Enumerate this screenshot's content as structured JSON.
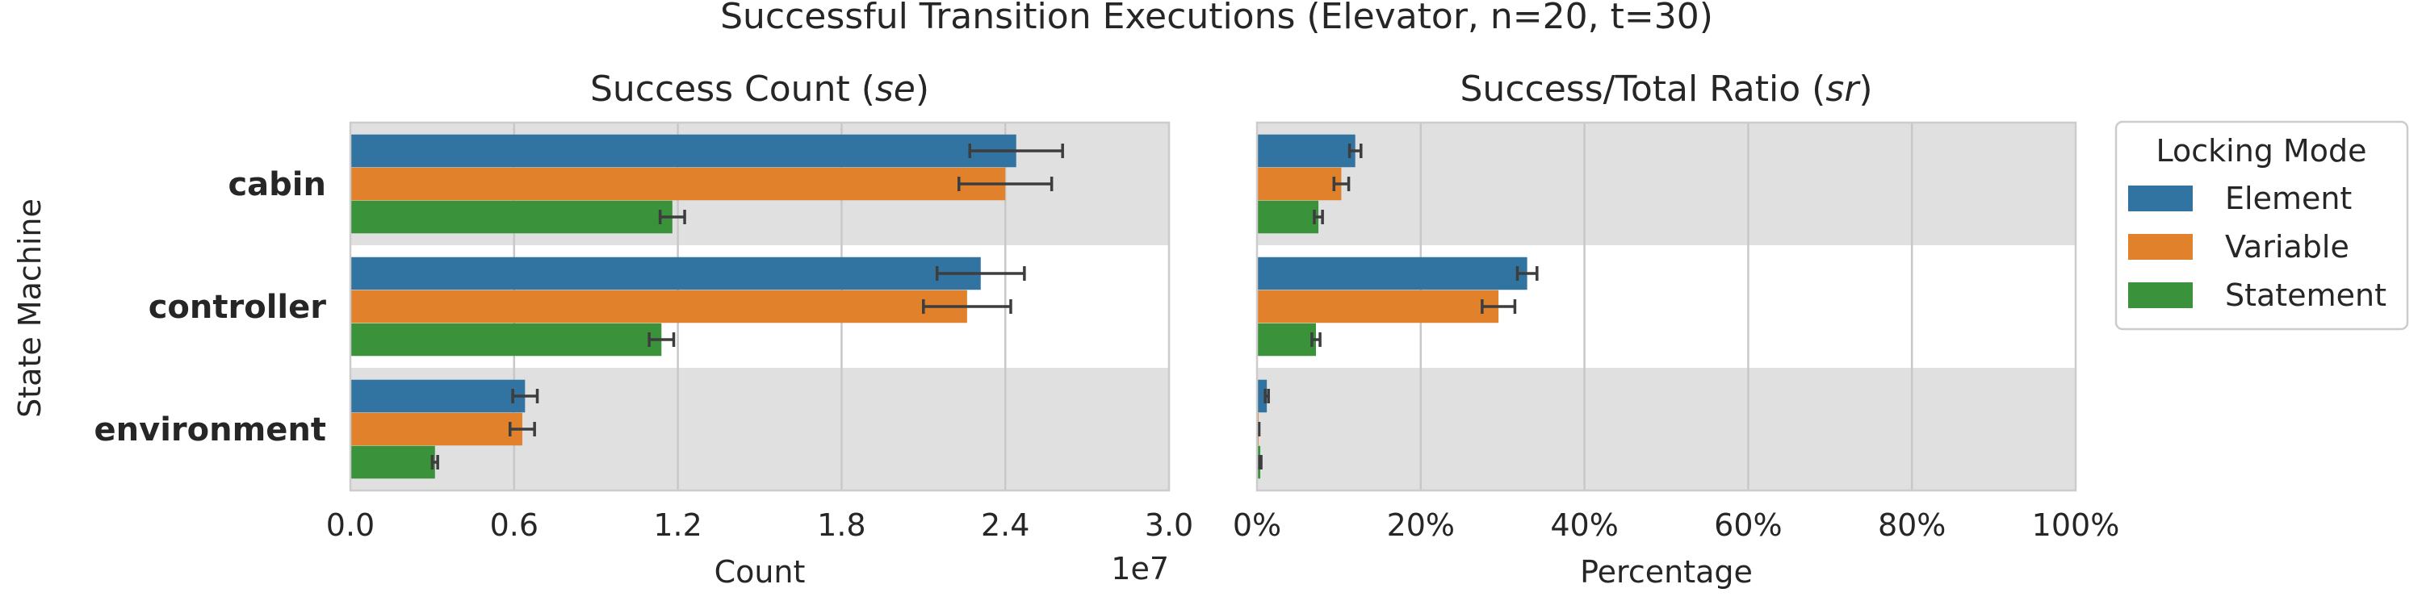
{
  "figure": {
    "suptitle": "Successful Transition Executions (Elevator, n=20, t=30)",
    "ylabel": "State Machine"
  },
  "legend": {
    "title": "Locking Mode",
    "placement": "right-outside",
    "entries": [
      {
        "name": "Element",
        "color": "#3274a1"
      },
      {
        "name": "Variable",
        "color": "#e1812c"
      },
      {
        "name": "Statement",
        "color": "#3a923a"
      }
    ]
  },
  "chart_data": [
    {
      "type": "bar",
      "orientation": "horizontal",
      "title_main": "Success Count (",
      "title_italic": "se",
      "title_end": ")",
      "xlabel": "Count",
      "x_offset_label": "1e7",
      "xlim": [
        0,
        30000000
      ],
      "ticks": [
        0,
        6000000,
        12000000,
        18000000,
        24000000,
        30000000
      ],
      "tick_labels": [
        "0.0",
        "0.6",
        "1.2",
        "1.8",
        "2.4",
        "3.0"
      ],
      "grid": true,
      "categories": [
        "cabin",
        "controller",
        "environment"
      ],
      "series": [
        {
          "name": "Element",
          "values": [
            24400000,
            23100000,
            6400000
          ],
          "err": [
            1700000,
            1600000,
            450000
          ]
        },
        {
          "name": "Variable",
          "values": [
            24000000,
            22600000,
            6300000
          ],
          "err": [
            1700000,
            1600000,
            450000
          ]
        },
        {
          "name": "Statement",
          "values": [
            11800000,
            11400000,
            3100000
          ],
          "err": [
            450000,
            450000,
            100000
          ]
        }
      ]
    },
    {
      "type": "bar",
      "orientation": "horizontal",
      "title_main": "Success/Total Ratio (",
      "title_italic": "sr",
      "title_end": ")",
      "xlabel": "Percentage",
      "xlim": [
        0,
        100
      ],
      "ticks": [
        0,
        20,
        40,
        60,
        80,
        100
      ],
      "tick_labels": [
        "0%",
        "20%",
        "40%",
        "60%",
        "80%",
        "100%"
      ],
      "grid": true,
      "categories": [
        "cabin",
        "controller",
        "environment"
      ],
      "series": [
        {
          "name": "Element",
          "values": [
            12.0,
            33.0,
            1.2
          ],
          "err": [
            0.7,
            1.2,
            0.2
          ]
        },
        {
          "name": "Variable",
          "values": [
            10.3,
            29.5,
            0.2
          ],
          "err": [
            0.9,
            2.0,
            0.05
          ]
        },
        {
          "name": "Statement",
          "values": [
            7.5,
            7.2,
            0.4
          ],
          "err": [
            0.5,
            0.5,
            0.1
          ]
        }
      ]
    }
  ]
}
